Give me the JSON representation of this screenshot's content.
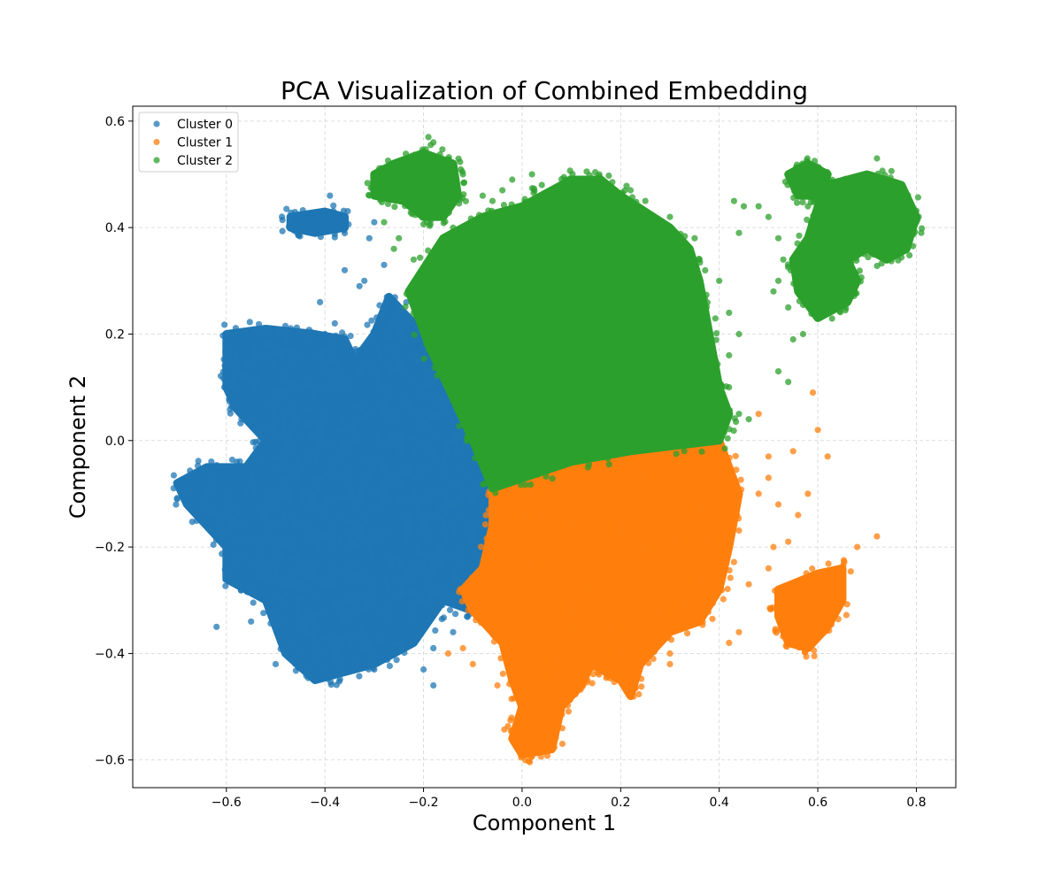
{
  "chart_data": {
    "type": "scatter",
    "title": "PCA Visualization of Combined Embedding",
    "xlabel": "Component 1",
    "ylabel": "Component 2",
    "xlim": [
      -0.79,
      0.88
    ],
    "ylim": [
      -0.652,
      0.628
    ],
    "xticks": [
      -0.6,
      -0.4,
      -0.2,
      0.0,
      0.2,
      0.4,
      0.6,
      0.8
    ],
    "xtick_labels": [
      "−0.6",
      "−0.4",
      "−0.2",
      "0.0",
      "0.2",
      "0.4",
      "0.6",
      "0.8"
    ],
    "yticks": [
      -0.6,
      -0.4,
      -0.2,
      0.0,
      0.2,
      0.4,
      0.6
    ],
    "ytick_labels": [
      "−0.6",
      "−0.4",
      "−0.2",
      "0.0",
      "0.2",
      "0.4",
      "0.6"
    ],
    "grid": true,
    "legend_position": "top-left",
    "series": [
      {
        "name": "Cluster 0",
        "color": "#1f77b4",
        "regions": [
          {
            "polygon": [
              [
                -0.27,
                0.27
              ],
              [
                -0.2,
                0.2
              ],
              [
                -0.12,
                0.05
              ],
              [
                -0.06,
                -0.05
              ],
              [
                -0.05,
                -0.18
              ],
              [
                -0.1,
                -0.32
              ],
              [
                -0.16,
                -0.3
              ],
              [
                -0.22,
                -0.38
              ],
              [
                -0.3,
                -0.42
              ],
              [
                -0.38,
                -0.44
              ],
              [
                -0.42,
                -0.45
              ],
              [
                -0.48,
                -0.4
              ],
              [
                -0.52,
                -0.3
              ],
              [
                -0.6,
                -0.26
              ],
              [
                -0.6,
                -0.2
              ],
              [
                -0.68,
                -0.12
              ],
              [
                -0.7,
                -0.08
              ],
              [
                -0.64,
                -0.05
              ],
              [
                -0.56,
                -0.05
              ],
              [
                -0.52,
                0.0
              ],
              [
                -0.58,
                0.06
              ],
              [
                -0.6,
                0.1
              ],
              [
                -0.6,
                0.2
              ],
              [
                -0.52,
                0.21
              ],
              [
                -0.42,
                0.2
              ],
              [
                -0.36,
                0.19
              ],
              [
                -0.34,
                0.15
              ],
              [
                -0.3,
                0.2
              ]
            ],
            "n": 2600
          },
          {
            "polygon": [
              [
                -0.47,
                0.42
              ],
              [
                -0.4,
                0.43
              ],
              [
                -0.36,
                0.42
              ],
              [
                -0.36,
                0.4
              ],
              [
                -0.42,
                0.39
              ],
              [
                -0.47,
                0.4
              ]
            ],
            "n": 120
          }
        ],
        "scatter_points": [
          [
            -0.39,
            0.46
          ],
          [
            -0.36,
            0.32
          ],
          [
            -0.33,
            0.29
          ],
          [
            -0.32,
            0.3
          ],
          [
            -0.31,
            0.38
          ],
          [
            -0.3,
            0.41
          ],
          [
            -0.28,
            0.33
          ],
          [
            -0.41,
            0.26
          ],
          [
            -0.55,
            -0.34
          ],
          [
            -0.5,
            -0.42
          ],
          [
            -0.46,
            -0.42
          ],
          [
            -0.32,
            -0.41
          ],
          [
            -0.3,
            -0.43
          ],
          [
            -0.2,
            -0.43
          ],
          [
            -0.18,
            -0.39
          ],
          [
            -0.14,
            -0.36
          ],
          [
            -0.18,
            -0.46
          ],
          [
            -0.62,
            -0.35
          ],
          [
            -0.64,
            -0.16
          ],
          [
            -0.7,
            -0.11
          ],
          [
            -0.38,
            0.22
          ],
          [
            -0.4,
            0.2
          ]
        ]
      },
      {
        "name": "Cluster 1",
        "color": "#ff7f0e",
        "regions": [
          {
            "polygon": [
              [
                -0.06,
                -0.09
              ],
              [
                0.1,
                -0.04
              ],
              [
                0.22,
                -0.02
              ],
              [
                0.4,
                0.0
              ],
              [
                0.44,
                -0.1
              ],
              [
                0.42,
                -0.2
              ],
              [
                0.4,
                -0.28
              ],
              [
                0.36,
                -0.34
              ],
              [
                0.3,
                -0.36
              ],
              [
                0.24,
                -0.42
              ],
              [
                0.22,
                -0.48
              ],
              [
                0.2,
                -0.45
              ],
              [
                0.14,
                -0.42
              ],
              [
                0.12,
                -0.46
              ],
              [
                0.08,
                -0.5
              ],
              [
                0.06,
                -0.58
              ],
              [
                0.0,
                -0.59
              ],
              [
                -0.02,
                -0.56
              ],
              [
                0.0,
                -0.5
              ],
              [
                -0.02,
                -0.45
              ],
              [
                -0.04,
                -0.38
              ],
              [
                -0.1,
                -0.32
              ],
              [
                -0.12,
                -0.28
              ],
              [
                -0.08,
                -0.24
              ],
              [
                -0.06,
                -0.16
              ]
            ],
            "n": 2400
          },
          {
            "polygon": [
              [
                0.52,
                -0.28
              ],
              [
                0.6,
                -0.25
              ],
              [
                0.65,
                -0.24
              ],
              [
                0.65,
                -0.3
              ],
              [
                0.62,
                -0.35
              ],
              [
                0.58,
                -0.39
              ],
              [
                0.54,
                -0.38
              ],
              [
                0.52,
                -0.33
              ]
            ],
            "n": 230
          }
        ],
        "scatter_points": [
          [
            0.59,
            0.09
          ],
          [
            0.6,
            0.02
          ],
          [
            0.55,
            -0.02
          ],
          [
            0.5,
            -0.03
          ],
          [
            0.5,
            -0.07
          ],
          [
            0.48,
            -0.1
          ],
          [
            0.52,
            -0.12
          ],
          [
            0.56,
            -0.14
          ],
          [
            0.54,
            -0.19
          ],
          [
            0.51,
            -0.2
          ],
          [
            0.5,
            -0.24
          ],
          [
            0.46,
            -0.27
          ],
          [
            0.44,
            -0.36
          ],
          [
            0.42,
            -0.38
          ],
          [
            0.68,
            -0.2
          ],
          [
            0.72,
            -0.18
          ],
          [
            0.62,
            -0.03
          ],
          [
            0.58,
            -0.1
          ],
          [
            0.48,
            0.05
          ],
          [
            -0.15,
            -0.4
          ],
          [
            -0.12,
            -0.39
          ],
          [
            -0.1,
            -0.42
          ],
          [
            -0.05,
            -0.46
          ],
          [
            0.1,
            -0.48
          ],
          [
            0.3,
            -0.42
          ],
          [
            0.3,
            -0.4
          ]
        ]
      },
      {
        "name": "Cluster 2",
        "color": "#2ca02c",
        "regions": [
          {
            "polygon": [
              [
                -0.23,
                0.28
              ],
              [
                -0.16,
                0.38
              ],
              [
                -0.08,
                0.42
              ],
              [
                0.0,
                0.44
              ],
              [
                0.06,
                0.47
              ],
              [
                0.1,
                0.49
              ],
              [
                0.16,
                0.49
              ],
              [
                0.2,
                0.46
              ],
              [
                0.3,
                0.4
              ],
              [
                0.34,
                0.36
              ],
              [
                0.36,
                0.3
              ],
              [
                0.38,
                0.2
              ],
              [
                0.4,
                0.1
              ],
              [
                0.42,
                0.05
              ],
              [
                0.4,
                0.0
              ],
              [
                0.22,
                -0.02
              ],
              [
                0.1,
                -0.04
              ],
              [
                -0.06,
                -0.09
              ],
              [
                -0.1,
                0.0
              ],
              [
                -0.14,
                0.08
              ],
              [
                -0.19,
                0.18
              ]
            ],
            "n": 2600
          },
          {
            "polygon": [
              [
                -0.26,
                0.52
              ],
              [
                -0.2,
                0.54
              ],
              [
                -0.14,
                0.52
              ],
              [
                -0.13,
                0.46
              ],
              [
                -0.16,
                0.42
              ],
              [
                -0.2,
                0.42
              ],
              [
                -0.24,
                0.45
              ],
              [
                -0.3,
                0.46
              ],
              [
                -0.3,
                0.5
              ]
            ],
            "n": 280
          },
          {
            "polygon": [
              [
                0.62,
                0.48
              ],
              [
                0.7,
                0.5
              ],
              [
                0.77,
                0.48
              ],
              [
                0.8,
                0.42
              ],
              [
                0.78,
                0.36
              ],
              [
                0.74,
                0.34
              ],
              [
                0.7,
                0.36
              ],
              [
                0.66,
                0.34
              ],
              [
                0.68,
                0.3
              ],
              [
                0.66,
                0.26
              ],
              [
                0.6,
                0.23
              ],
              [
                0.56,
                0.28
              ],
              [
                0.55,
                0.34
              ],
              [
                0.58,
                0.38
              ],
              [
                0.6,
                0.44
              ]
            ],
            "n": 520
          },
          {
            "polygon": [
              [
                0.54,
                0.5
              ],
              [
                0.58,
                0.52
              ],
              [
                0.62,
                0.5
              ],
              [
                0.6,
                0.46
              ],
              [
                0.56,
                0.46
              ]
            ],
            "n": 80
          }
        ],
        "scatter_points": [
          [
            -0.19,
            0.57
          ],
          [
            -0.18,
            0.56
          ],
          [
            -0.12,
            0.5
          ],
          [
            -0.08,
            0.46
          ],
          [
            -0.06,
            0.45
          ],
          [
            -0.04,
            0.47
          ],
          [
            0.02,
            0.5
          ],
          [
            0.04,
            0.48
          ],
          [
            -0.02,
            0.49
          ],
          [
            0.22,
            0.47
          ],
          [
            0.25,
            0.45
          ],
          [
            0.3,
            0.42
          ],
          [
            0.35,
            0.38
          ],
          [
            0.36,
            0.34
          ],
          [
            0.4,
            0.3
          ],
          [
            0.42,
            0.24
          ],
          [
            0.44,
            0.2
          ],
          [
            0.42,
            0.16
          ],
          [
            0.42,
            0.1
          ],
          [
            0.44,
            0.05
          ],
          [
            0.46,
            0.04
          ],
          [
            0.43,
            0.45
          ],
          [
            0.45,
            0.44
          ],
          [
            0.44,
            0.39
          ],
          [
            0.48,
            0.44
          ],
          [
            0.5,
            0.42
          ],
          [
            0.52,
            0.38
          ],
          [
            0.51,
            0.28
          ],
          [
            0.52,
            0.3
          ],
          [
            0.53,
            0.34
          ],
          [
            0.54,
            0.25
          ],
          [
            0.55,
            0.19
          ],
          [
            0.57,
            0.2
          ],
          [
            0.52,
            0.13
          ],
          [
            0.54,
            0.11
          ],
          [
            0.58,
            0.44
          ],
          [
            0.72,
            0.53
          ],
          [
            0.81,
            0.39
          ],
          [
            0.8,
            0.41
          ],
          [
            -0.26,
            0.36
          ],
          [
            -0.22,
            0.34
          ],
          [
            -0.2,
            0.3
          ],
          [
            -0.25,
            0.38
          ],
          [
            -0.28,
            0.41
          ],
          [
            -0.14,
            0.4
          ],
          [
            -0.1,
            0.37
          ]
        ]
      }
    ]
  }
}
